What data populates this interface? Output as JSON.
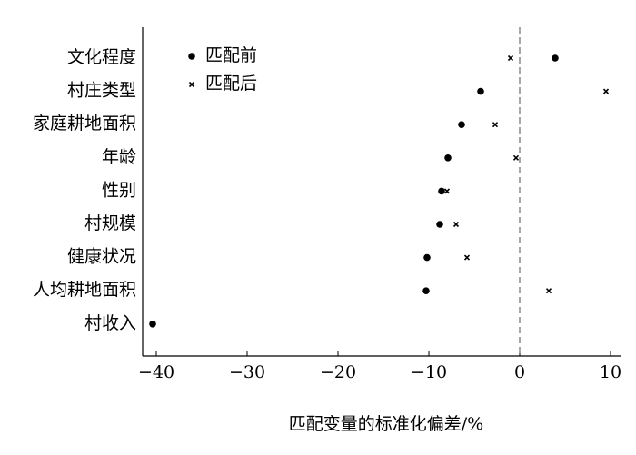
{
  "chart_data": {
    "type": "scatter",
    "xlabel": "匹配变量的标准化偏差/%",
    "categories": [
      "文化程度",
      "村庄类型",
      "家庭耕地面积",
      "年龄",
      "性别",
      "村规模",
      "健康状况",
      "人均耕地面积",
      "村收入"
    ],
    "series": [
      {
        "name": "匹配前",
        "color": "#000000",
        "marker": "circle",
        "values": [
          3.9,
          -4.3,
          -6.4,
          -7.9,
          -8.6,
          -8.8,
          -10.2,
          -10.3,
          -40.4
        ]
      },
      {
        "name": "匹配后",
        "color": "#000000",
        "marker": "x",
        "values": [
          -1.0,
          9.5,
          -2.7,
          -0.4,
          -8.0,
          -7.0,
          -5.8,
          3.2,
          null
        ]
      }
    ],
    "xlim": [
      -41.5,
      11.1
    ],
    "xticks": [
      {
        "value": -40,
        "label": "−40"
      },
      {
        "value": -30,
        "label": "−30"
      },
      {
        "value": -20,
        "label": "−20"
      },
      {
        "value": -10,
        "label": "−10"
      },
      0,
      10
    ],
    "vline": 0,
    "legend": "upper left"
  }
}
